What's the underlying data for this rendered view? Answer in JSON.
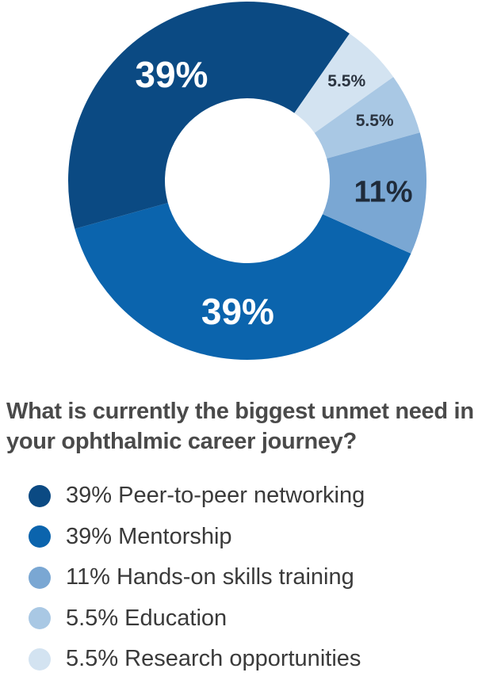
{
  "chart_data": {
    "type": "pie",
    "title": "What is currently the biggest unmet need in your ophthalmic career journey?",
    "series": [
      {
        "name": "Peer-to-peer networking",
        "value": 39,
        "label": "39%",
        "color": "#0b4a83"
      },
      {
        "name": "Mentorship",
        "value": 39,
        "label": "39%",
        "color": "#0b64ad"
      },
      {
        "name": "Hands-on skills training",
        "value": 11,
        "label": "11%",
        "color": "#7aa7d3"
      },
      {
        "name": "Education",
        "value": 5.5,
        "label": "5.5%",
        "color": "#a9c8e4"
      },
      {
        "name": "Research opportunities",
        "value": 5.5,
        "label": "5.5%",
        "color": "#d3e3f1"
      }
    ]
  },
  "legend": {
    "items": [
      {
        "text": "39% Peer-to-peer networking",
        "color": "#0b4a83"
      },
      {
        "text": "39% Mentorship",
        "color": "#0b64ad"
      },
      {
        "text": "11% Hands-on skills training",
        "color": "#7aa7d3"
      },
      {
        "text": "5.5% Education",
        "color": "#a9c8e4"
      },
      {
        "text": "5.5% Research opportunities",
        "color": "#d3e3f1"
      }
    ]
  }
}
